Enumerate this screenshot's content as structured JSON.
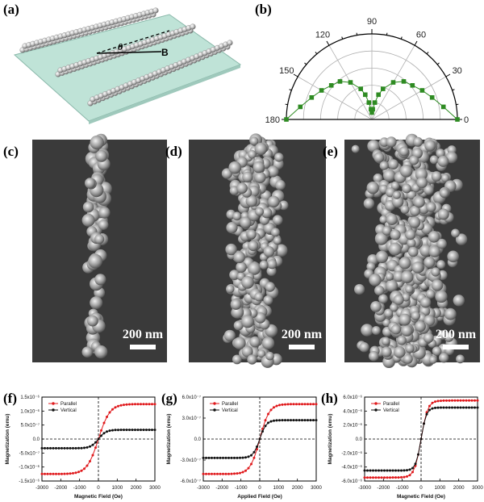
{
  "panels": {
    "a": {
      "letter": "(a)",
      "field_label": "B",
      "angle_label": "θ"
    },
    "b": {
      "letter": "(b)"
    },
    "c": {
      "letter": "(c)",
      "scale_bar": "200 nm"
    },
    "d": {
      "letter": "(d)",
      "scale_bar": "200 nm"
    },
    "e": {
      "letter": "(e)",
      "scale_bar": "200 nm"
    },
    "f": {
      "letter": "(f)"
    },
    "g": {
      "letter": "(g)"
    },
    "h": {
      "letter": "(h)"
    }
  },
  "chart_data": [
    {
      "panel": "b",
      "type": "polar-scatter",
      "angle_ticks": [
        "0",
        "30",
        "60",
        "90",
        "120",
        "150",
        "180"
      ],
      "theta_deg": [
        0,
        10,
        20,
        30,
        40,
        50,
        60,
        70,
        75,
        80,
        85,
        90,
        95,
        100,
        105,
        110,
        120,
        130,
        140,
        150,
        160,
        170,
        180
      ],
      "r": [
        1.0,
        0.85,
        0.75,
        0.68,
        0.62,
        0.58,
        0.5,
        0.38,
        0.3,
        0.2,
        0.12,
        0.08,
        0.12,
        0.2,
        0.3,
        0.38,
        0.5,
        0.58,
        0.62,
        0.68,
        0.75,
        0.85,
        1.0
      ],
      "series_color": "#2e8b22"
    },
    {
      "panel": "f",
      "type": "line",
      "xlabel": "Magnetic Field (Oe)",
      "ylabel": "Magnetization (emu)",
      "x_ticks": [
        "-3000",
        "-2000",
        "-1000",
        "0",
        "1000",
        "2000",
        "3000"
      ],
      "y_ticks": [
        "1.5x10⁻⁶",
        "1.0x10⁻⁶",
        "5.0x10⁻⁷",
        "0.0",
        "-5.0x10⁻⁷",
        "-1.0x10⁻⁶",
        "-1.5x10⁻⁶"
      ],
      "xlim": [
        -3000,
        3000
      ],
      "ylim": [
        -1.5e-06,
        1.5e-06
      ],
      "series": [
        {
          "name": "Parallel",
          "color": "#e0191c",
          "ms": 1.25e-06,
          "hs": 600
        },
        {
          "name": "Vertical",
          "color": "#111111",
          "ms": 3.3e-07,
          "hs": 400
        }
      ]
    },
    {
      "panel": "g",
      "type": "line",
      "xlabel": "Applied Field (Oe)",
      "ylabel": "Magnetization (emu)",
      "x_ticks": [
        "-3000",
        "-2000",
        "-1000",
        "0",
        "1000",
        "2000",
        "3000"
      ],
      "y_ticks": [
        "6.0x10⁻⁷",
        "3.0x10⁻⁷",
        "0.0",
        "-3.0x10⁻⁷",
        "-6.0x10⁻⁷"
      ],
      "xlim": [
        -3000,
        3000
      ],
      "ylim": [
        -6e-07,
        6e-07
      ],
      "series": [
        {
          "name": "Parallel",
          "color": "#e0191c",
          "ms": 5e-07,
          "hs": 500
        },
        {
          "name": "Vertical",
          "color": "#111111",
          "ms": 2.7e-07,
          "hs": 350
        }
      ]
    },
    {
      "panel": "h",
      "type": "line",
      "xlabel": "Magnetic Field (Oe)",
      "ylabel": "Magnetization (emu)",
      "x_ticks": [
        "-3000",
        "-2000",
        "-1000",
        "0",
        "1000",
        "2000",
        "3000"
      ],
      "y_ticks": [
        "6.0x10⁻⁶",
        "4.0x10⁻⁶",
        "2.0x10⁻⁶",
        "0.0",
        "-2.0x10⁻⁶",
        "-4.0x10⁻⁶",
        "-6.0x10⁻⁶"
      ],
      "xlim": [
        -3000,
        3000
      ],
      "ylim": [
        -6e-06,
        6e-06
      ],
      "series": [
        {
          "name": "Parallel",
          "color": "#e0191c",
          "ms": 5.5e-06,
          "hs": 350
        },
        {
          "name": "Vertical",
          "color": "#111111",
          "ms": 4.5e-06,
          "hs": 280
        }
      ]
    }
  ]
}
